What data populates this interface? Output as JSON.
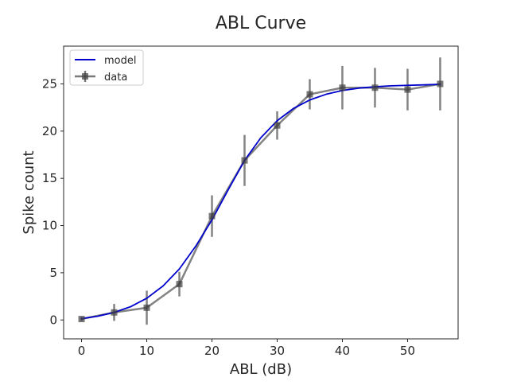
{
  "chart_data": {
    "type": "line",
    "title": "ABL Curve",
    "xlabel": "ABL (dB)",
    "ylabel": "Spike count",
    "xlim": [
      -2.75,
      57.75
    ],
    "ylim": [
      -2,
      29
    ],
    "x_ticks": [
      0,
      10,
      20,
      30,
      40,
      50
    ],
    "y_ticks": [
      0,
      5,
      10,
      15,
      20,
      25
    ],
    "grid": false,
    "legend_position": "top-left",
    "series": [
      {
        "name": "model",
        "style": "line",
        "color": "#0000cc",
        "x": [
          0,
          2.5,
          5,
          7.5,
          10,
          12.5,
          15,
          17.5,
          20,
          22.5,
          25,
          27.5,
          30,
          32.5,
          35,
          37.5,
          40,
          42.5,
          45,
          47.5,
          50,
          52.5,
          55
        ],
        "y": [
          0.15,
          0.4,
          0.8,
          1.4,
          2.3,
          3.6,
          5.4,
          7.8,
          10.6,
          13.8,
          16.9,
          19.3,
          21.1,
          22.4,
          23.3,
          23.9,
          24.3,
          24.55,
          24.7,
          24.8,
          24.85,
          24.9,
          24.95
        ]
      },
      {
        "name": "data",
        "style": "line-markers-errorbars",
        "color": "#404040",
        "x": [
          0,
          5,
          10,
          15,
          20,
          25,
          30,
          35,
          40,
          45,
          50,
          55
        ],
        "y": [
          0.1,
          0.8,
          1.3,
          3.8,
          11.0,
          16.9,
          20.6,
          23.9,
          24.6,
          24.6,
          24.4,
          25.0
        ],
        "yerr": [
          0.2,
          0.9,
          1.8,
          1.3,
          2.2,
          2.7,
          1.5,
          1.6,
          2.3,
          2.1,
          2.2,
          2.8
        ]
      }
    ]
  }
}
